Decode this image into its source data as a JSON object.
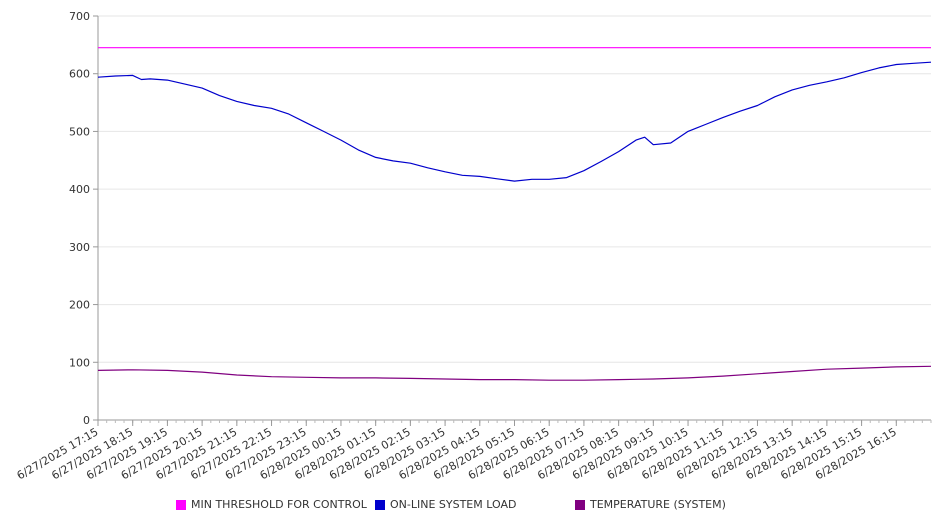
{
  "chart_data": {
    "type": "line",
    "title": "",
    "xlabel": "",
    "ylabel": "",
    "ylim": [
      0,
      700
    ],
    "yticks": [
      0,
      100,
      200,
      300,
      400,
      500,
      600,
      700
    ],
    "x_tick_labels": [
      "6/27/2025 17:15",
      "6/27/2025 18:15",
      "6/27/2025 19:15",
      "6/27/2025 20:15",
      "6/27/2025 21:15",
      "6/27/2025 22:15",
      "6/27/2025 23:15",
      "6/28/2025 00:15",
      "6/28/2025 01:15",
      "6/28/2025 02:15",
      "6/28/2025 03:15",
      "6/28/2025 04:15",
      "6/28/2025 05:15",
      "6/28/2025 06:15",
      "6/28/2025 07:15",
      "6/28/2025 08:15",
      "6/28/2025 09:15",
      "6/28/2025 10:15",
      "6/28/2025 11:15",
      "6/28/2025 12:15",
      "6/28/2025 13:15",
      "6/28/2025 14:15",
      "6/28/2025 15:15",
      "6/28/2025 16:15"
    ],
    "x_range": [
      "6/27/2025 17:15",
      "6/28/2025 17:15"
    ],
    "grid": true,
    "legend_position": "bottom",
    "series": [
      {
        "name": "MIN THRESHOLD FOR CONTROL",
        "color": "#ff00ff",
        "x": [
          "6/27/2025 17:15",
          "6/28/2025 17:15"
        ],
        "y": [
          645,
          645
        ]
      },
      {
        "name": "ON-LINE SYSTEM LOAD",
        "color": "#0000cc",
        "x": [
          "6/27/2025 17:15",
          "6/27/2025 17:45",
          "6/27/2025 18:15",
          "6/27/2025 18:30",
          "6/27/2025 18:45",
          "6/27/2025 19:15",
          "6/27/2025 19:45",
          "6/27/2025 20:15",
          "6/27/2025 20:45",
          "6/27/2025 21:15",
          "6/27/2025 21:45",
          "6/27/2025 22:15",
          "6/27/2025 22:45",
          "6/27/2025 23:15",
          "6/27/2025 23:45",
          "6/28/2025 00:15",
          "6/28/2025 00:45",
          "6/28/2025 01:15",
          "6/28/2025 01:45",
          "6/28/2025 02:15",
          "6/28/2025 02:45",
          "6/28/2025 03:15",
          "6/28/2025 03:45",
          "6/28/2025 04:15",
          "6/28/2025 04:45",
          "6/28/2025 05:15",
          "6/28/2025 05:45",
          "6/28/2025 06:15",
          "6/28/2025 06:45",
          "6/28/2025 07:15",
          "6/28/2025 07:45",
          "6/28/2025 08:15",
          "6/28/2025 08:45",
          "6/28/2025 09:00",
          "6/28/2025 09:15",
          "6/28/2025 09:45",
          "6/28/2025 10:15",
          "6/28/2025 10:45",
          "6/28/2025 11:15",
          "6/28/2025 11:45",
          "6/28/2025 12:15",
          "6/28/2025 12:45",
          "6/28/2025 13:15",
          "6/28/2025 13:45",
          "6/28/2025 14:15",
          "6/28/2025 14:45",
          "6/28/2025 15:15",
          "6/28/2025 15:45",
          "6/28/2025 16:15",
          "6/28/2025 16:45",
          "6/28/2025 17:15"
        ],
        "y": [
          594,
          596,
          597,
          590,
          591,
          589,
          582,
          575,
          562,
          552,
          545,
          540,
          530,
          515,
          500,
          485,
          468,
          455,
          449,
          445,
          437,
          430,
          424,
          422,
          418,
          414,
          417,
          417,
          420,
          432,
          448,
          465,
          485,
          490,
          477,
          480,
          500,
          512,
          524,
          535,
          545,
          560,
          572,
          580,
          586,
          593,
          602,
          610,
          616,
          618,
          620
        ]
      },
      {
        "name": "TEMPERATURE (SYSTEM)",
        "color": "#800080",
        "x": [
          "6/27/2025 17:15",
          "6/27/2025 18:15",
          "6/27/2025 19:15",
          "6/27/2025 20:15",
          "6/27/2025 21:15",
          "6/27/2025 22:15",
          "6/27/2025 23:15",
          "6/28/2025 00:15",
          "6/28/2025 01:15",
          "6/28/2025 02:15",
          "6/28/2025 03:15",
          "6/28/2025 04:15",
          "6/28/2025 05:15",
          "6/28/2025 06:15",
          "6/28/2025 07:15",
          "6/28/2025 08:15",
          "6/28/2025 09:15",
          "6/28/2025 10:15",
          "6/28/2025 11:15",
          "6/28/2025 12:15",
          "6/28/2025 13:15",
          "6/28/2025 14:15",
          "6/28/2025 15:15",
          "6/28/2025 16:15",
          "6/28/2025 17:15"
        ],
        "y": [
          86,
          87,
          86,
          83,
          78,
          75,
          74,
          73,
          73,
          72,
          71,
          70,
          70,
          69,
          69,
          70,
          71,
          73,
          76,
          80,
          84,
          88,
          90,
          92,
          93
        ]
      }
    ]
  }
}
